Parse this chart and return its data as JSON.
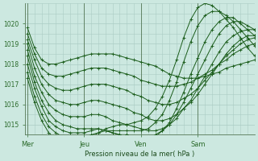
{
  "xlabel": "Pression niveau de la mer( hPa )",
  "ylim": [
    1014.5,
    1020.5
  ],
  "yticks": [
    1015,
    1016,
    1017,
    1018,
    1019,
    1020
  ],
  "background_color": "#cce8e0",
  "grid_color": "#aaccc4",
  "line_color": "#1a5c1a",
  "xtick_labels": [
    "Mer",
    "Jeu",
    "Ven",
    "Sam"
  ],
  "xtick_positions": [
    0,
    48,
    96,
    144
  ],
  "total_hours": 192,
  "series": [
    [
      1019.8,
      1018.8,
      1018.2,
      1018.0,
      1018.0,
      1018.1,
      1018.2,
      1018.3,
      1018.4,
      1018.5,
      1018.5,
      1018.5,
      1018.5,
      1018.4,
      1018.3,
      1018.2,
      1018.1,
      1018.0,
      1017.9,
      1017.7,
      1017.5,
      1017.4,
      1017.3,
      1017.3,
      1017.3,
      1017.4,
      1017.5,
      1017.6,
      1017.8,
      1017.9,
      1018.0,
      1018.1,
      1018.2
    ],
    [
      1019.5,
      1018.5,
      1017.8,
      1017.5,
      1017.4,
      1017.4,
      1017.5,
      1017.6,
      1017.7,
      1017.8,
      1017.8,
      1017.8,
      1017.7,
      1017.6,
      1017.5,
      1017.4,
      1017.2,
      1017.1,
      1017.0,
      1016.9,
      1016.9,
      1016.9,
      1017.0,
      1017.1,
      1017.3,
      1017.5,
      1017.7,
      1018.0,
      1018.2,
      1018.5,
      1018.7,
      1018.9,
      1019.0
    ],
    [
      1019.2,
      1018.2,
      1017.4,
      1017.0,
      1016.8,
      1016.7,
      1016.7,
      1016.8,
      1016.9,
      1017.0,
      1017.0,
      1017.0,
      1016.9,
      1016.8,
      1016.7,
      1016.5,
      1016.4,
      1016.2,
      1016.1,
      1016.0,
      1016.0,
      1016.1,
      1016.3,
      1016.5,
      1016.8,
      1017.2,
      1017.6,
      1018.0,
      1018.4,
      1018.7,
      1019.0,
      1019.2,
      1019.3
    ],
    [
      1019.0,
      1017.8,
      1017.0,
      1016.5,
      1016.2,
      1016.1,
      1016.0,
      1016.0,
      1016.1,
      1016.2,
      1016.2,
      1016.1,
      1016.0,
      1015.9,
      1015.8,
      1015.6,
      1015.5,
      1015.3,
      1015.2,
      1015.2,
      1015.3,
      1015.5,
      1015.8,
      1016.1,
      1016.5,
      1017.0,
      1017.5,
      1018.0,
      1018.5,
      1018.9,
      1019.2,
      1019.4,
      1019.4
    ],
    [
      1018.7,
      1017.4,
      1016.6,
      1016.0,
      1015.7,
      1015.5,
      1015.4,
      1015.4,
      1015.4,
      1015.5,
      1015.5,
      1015.4,
      1015.2,
      1015.1,
      1015.0,
      1014.9,
      1014.8,
      1014.7,
      1014.7,
      1014.8,
      1015.0,
      1015.3,
      1015.8,
      1016.2,
      1016.8,
      1017.4,
      1018.0,
      1018.6,
      1019.1,
      1019.4,
      1019.6,
      1019.7,
      1019.7
    ],
    [
      1018.4,
      1017.1,
      1016.2,
      1015.6,
      1015.2,
      1015.0,
      1014.9,
      1014.8,
      1014.8,
      1014.8,
      1014.8,
      1014.7,
      1014.6,
      1014.5,
      1014.5,
      1014.4,
      1014.4,
      1014.4,
      1014.5,
      1014.7,
      1015.0,
      1015.5,
      1016.1,
      1016.8,
      1017.5,
      1018.2,
      1018.9,
      1019.5,
      1019.9,
      1020.1,
      1020.1,
      1019.9,
      1019.7
    ],
    [
      1018.0,
      1016.8,
      1015.9,
      1015.2,
      1014.9,
      1014.7,
      1014.6,
      1014.6,
      1014.6,
      1014.7,
      1014.8,
      1014.7,
      1014.6,
      1014.5,
      1014.5,
      1014.4,
      1014.3,
      1014.3,
      1014.4,
      1014.7,
      1015.1,
      1015.8,
      1016.6,
      1017.5,
      1018.3,
      1019.1,
      1019.7,
      1020.1,
      1020.3,
      1020.3,
      1020.0,
      1019.7,
      1019.4
    ],
    [
      1017.6,
      1016.4,
      1015.5,
      1014.9,
      1014.6,
      1014.4,
      1014.3,
      1014.3,
      1014.4,
      1014.5,
      1014.6,
      1014.7,
      1014.7,
      1014.7,
      1014.7,
      1014.7,
      1014.7,
      1014.8,
      1015.1,
      1015.5,
      1016.2,
      1017.1,
      1018.1,
      1019.1,
      1019.9,
      1020.4,
      1020.6,
      1020.6,
      1020.4,
      1020.1,
      1019.7,
      1019.3,
      1018.9
    ],
    [
      1017.3,
      1016.1,
      1015.2,
      1014.6,
      1014.3,
      1014.2,
      1014.1,
      1014.1,
      1014.2,
      1014.4,
      1014.6,
      1014.8,
      1014.9,
      1015.0,
      1015.0,
      1015.1,
      1015.2,
      1015.4,
      1015.8,
      1016.4,
      1017.2,
      1018.2,
      1019.3,
      1020.2,
      1020.8,
      1021.0,
      1020.9,
      1020.6,
      1020.2,
      1019.8,
      1019.3,
      1018.8,
      1018.4
    ]
  ]
}
